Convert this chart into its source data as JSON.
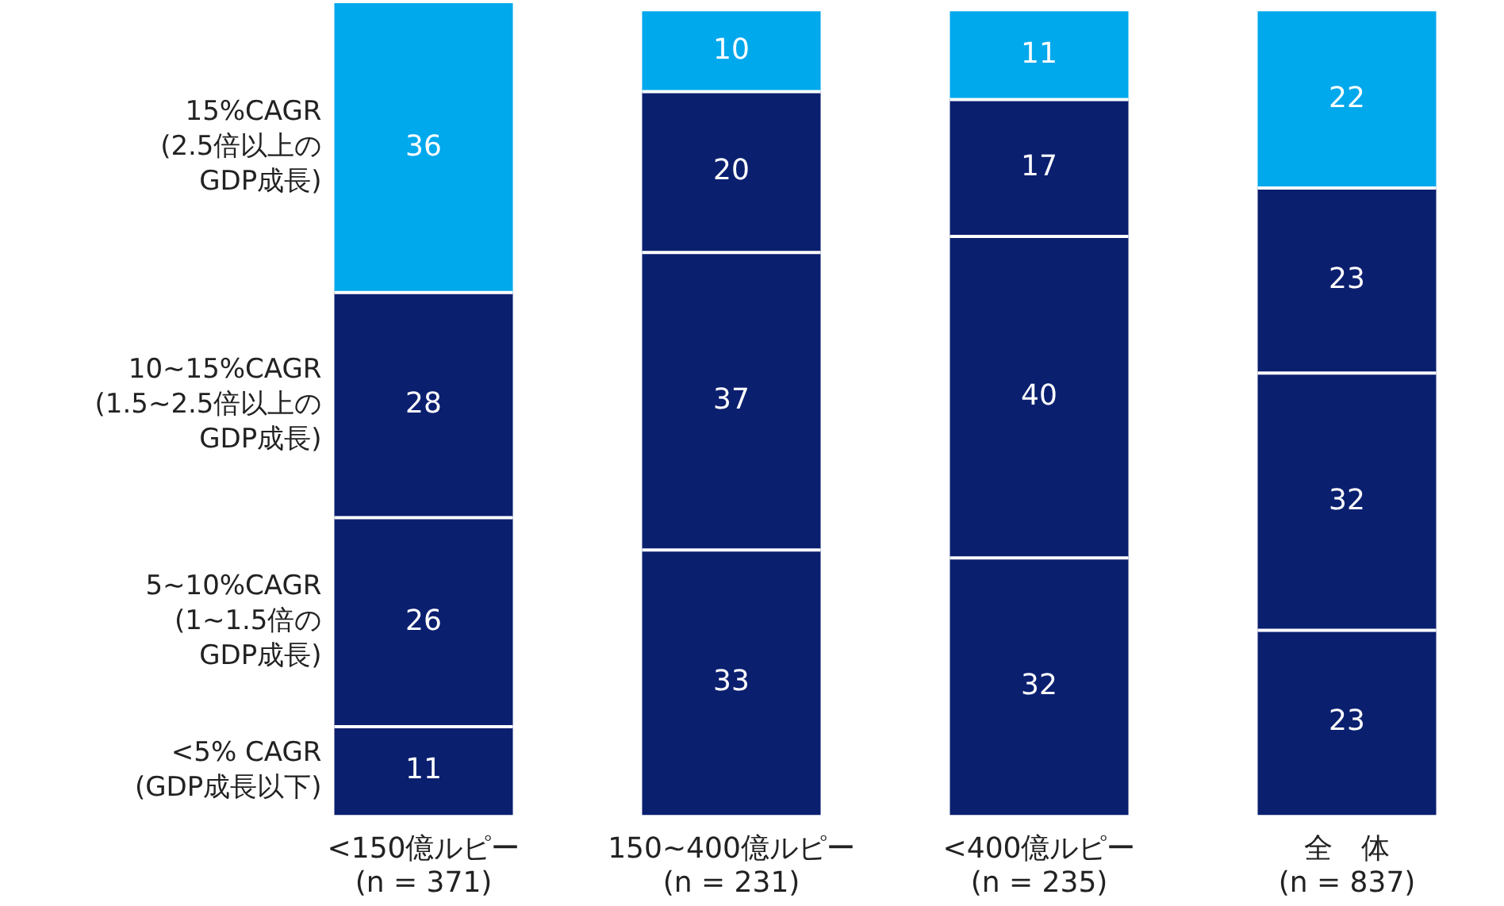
{
  "chart_data": {
    "type": "bar",
    "stacked": true,
    "data_labels": true,
    "legend": false,
    "grid": false,
    "categories": [
      "<150億ルピー\n(n = 371)",
      "150~400億ルピー\n(n = 231)",
      "<400億ルピー\n(n = 235)",
      "全　体\n(n = 837)"
    ],
    "series": [
      {
        "name": "<5% CAGR\n(GDP成長以下)",
        "color": "#0b1f6f",
        "values": [
          11,
          33,
          32,
          23
        ]
      },
      {
        "name": "5~10%CAGR\n(1~1.5倍の\nGDP成長)",
        "color": "#0b1f6f",
        "values": [
          26,
          37,
          40,
          32
        ]
      },
      {
        "name": "10~15%CAGR\n(1.5~2.5倍以上のGDP成長)",
        "color": "#0b1f6f",
        "values": [
          28,
          20,
          17,
          23
        ]
      },
      {
        "name": "15%CAGR\n(2.5倍以上の\nGDP成長)",
        "color": "#00a8ec",
        "values": [
          36,
          10,
          11,
          22
        ]
      }
    ]
  }
}
